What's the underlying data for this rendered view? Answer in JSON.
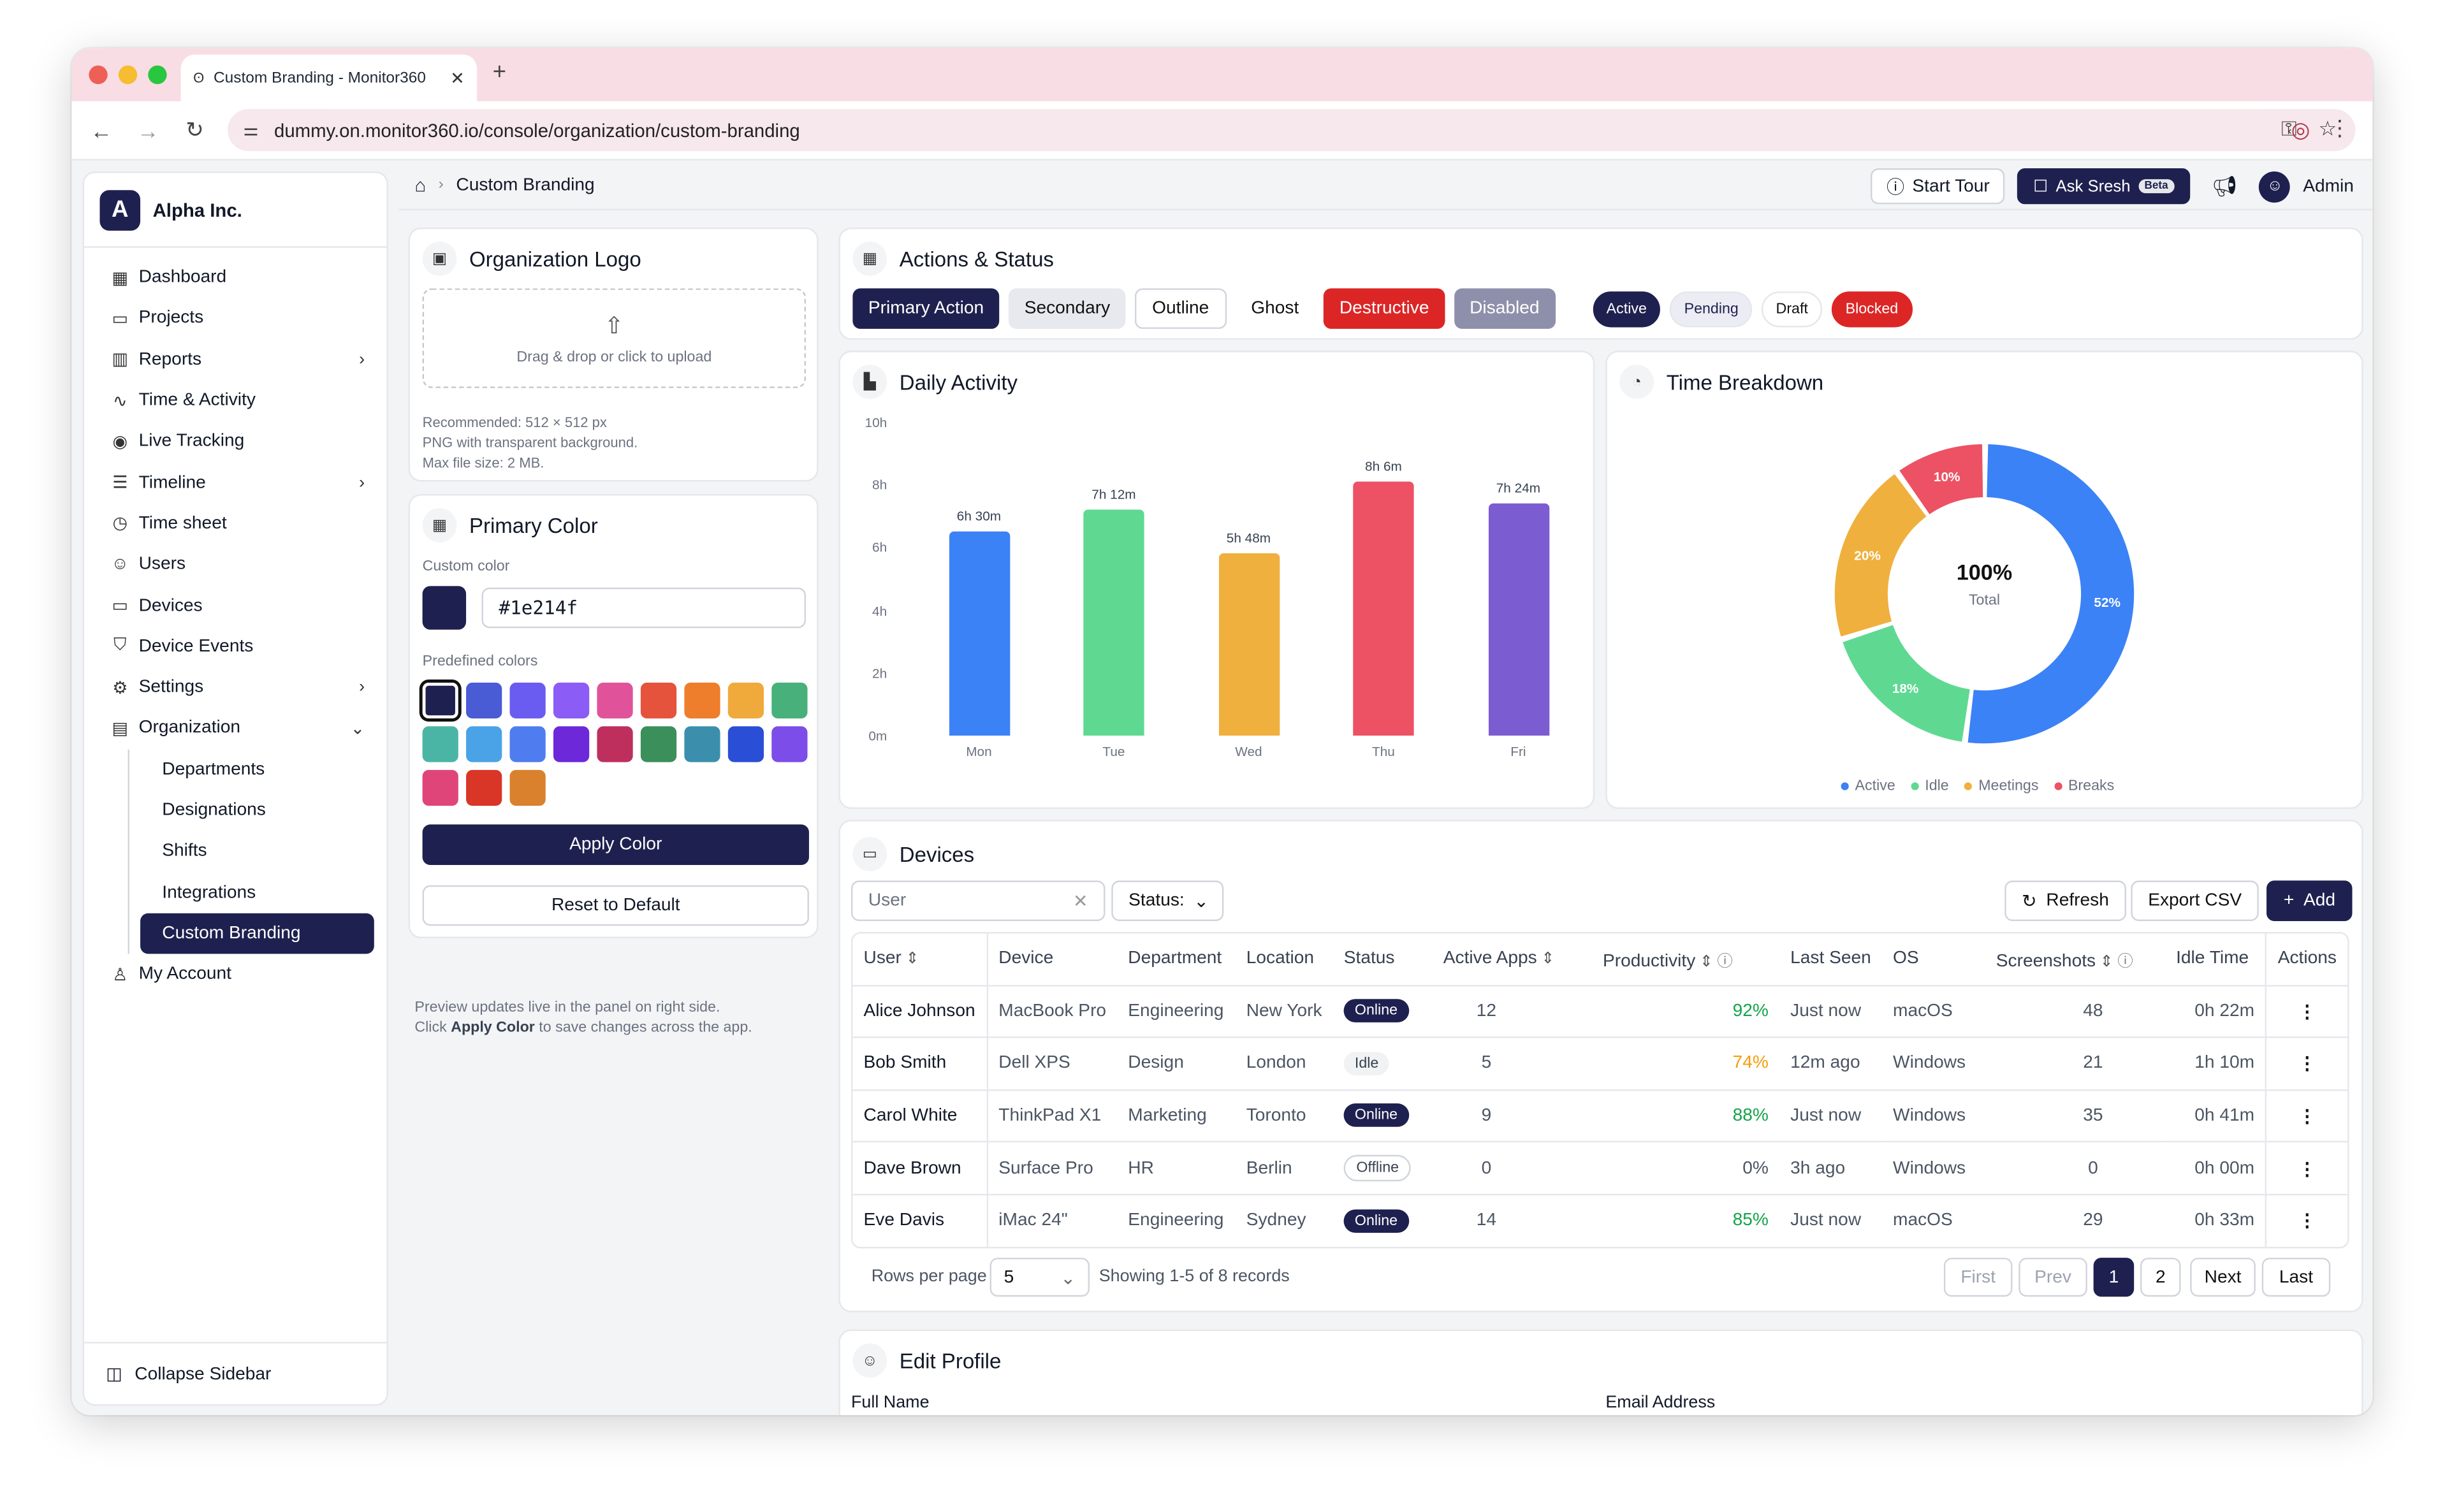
{
  "browser": {
    "tab_title": "Custom Branding - Monitor360",
    "url": "dummy.on.monitor360.io/console/organization/custom-branding"
  },
  "org": {
    "initial": "A",
    "name": "Alpha Inc."
  },
  "sidebar": {
    "items": [
      {
        "label": "Dashboard",
        "icon": "dashboard-icon",
        "glyph": "▦",
        "chev": ""
      },
      {
        "label": "Projects",
        "icon": "folder-icon",
        "glyph": "▭",
        "chev": ""
      },
      {
        "label": "Reports",
        "icon": "reports-icon",
        "glyph": "▥",
        "chev": "›"
      },
      {
        "label": "Time & Activity",
        "icon": "activity-icon",
        "glyph": "∿",
        "chev": ""
      },
      {
        "label": "Live Tracking",
        "icon": "broadcast-icon",
        "glyph": "◉",
        "chev": ""
      },
      {
        "label": "Timeline",
        "icon": "timeline-icon",
        "glyph": "☰",
        "chev": "›"
      },
      {
        "label": "Time sheet",
        "icon": "timer-icon",
        "glyph": "◷",
        "chev": ""
      },
      {
        "label": "Users",
        "icon": "users-icon",
        "glyph": "☺",
        "chev": ""
      },
      {
        "label": "Devices",
        "icon": "monitor-icon",
        "glyph": "▭",
        "chev": ""
      },
      {
        "label": "Device Events",
        "icon": "shield-icon",
        "glyph": "⛉",
        "chev": ""
      },
      {
        "label": "Settings",
        "icon": "gear-icon",
        "glyph": "⚙",
        "chev": "›"
      },
      {
        "label": "Organization",
        "icon": "building-icon",
        "glyph": "▤",
        "chev": "⌄"
      }
    ],
    "sub_items": [
      "Departments",
      "Designations",
      "Shifts",
      "Integrations",
      "Custom Branding"
    ],
    "my_account": "My Account",
    "collapse": "Collapse Sidebar"
  },
  "header": {
    "breadcrumb": "Custom Branding",
    "start_tour": "Start Tour",
    "ask": "Ask Sresh",
    "beta": "Beta",
    "user": "Admin"
  },
  "logo_card": {
    "title": "Organization Logo",
    "drop": "Drag & drop or click to upload",
    "note1": "Recommended: 512 × 512 px",
    "note2": "PNG with transparent background.",
    "note3": "Max file size: 2 MB."
  },
  "color_card": {
    "title": "Primary Color",
    "custom_label": "Custom color",
    "hex": "#1e214f",
    "predefined_label": "Predefined colors",
    "swatches": [
      "#1e214f",
      "#4a5bd6",
      "#6a5cf0",
      "#8b5cf6",
      "#e0539b",
      "#e5533d",
      "#ee7d2c",
      "#f0a93b",
      "#48b07a",
      "#4bb5a5",
      "#49a3e6",
      "#4f7df0",
      "#6d28d9",
      "#be2f5e",
      "#3a8f5b",
      "#3b8fad",
      "#2a4fd6",
      "#7c4de8",
      "#e0457a",
      "#d93628",
      "#d9812c"
    ],
    "apply": "Apply Color",
    "reset": "Reset to Default"
  },
  "preview_note": {
    "line1": "Preview updates live in the panel on right side.",
    "line2a": "Click ",
    "line2b": "Apply Color",
    "line2c": " to save changes across the app."
  },
  "actions": {
    "title": "Actions & Status",
    "buttons": [
      "Primary Action",
      "Secondary",
      "Outline",
      "Ghost",
      "Destructive",
      "Disabled"
    ],
    "pills": [
      "Active",
      "Pending",
      "Draft",
      "Blocked"
    ]
  },
  "daily": {
    "title": "Daily Activity"
  },
  "breakdown": {
    "title": "Time Breakdown",
    "center": "100%",
    "center_sub": "Total"
  },
  "chart_data": [
    {
      "type": "bar",
      "title": "Daily Activity",
      "categories": [
        "Mon",
        "Tue",
        "Wed",
        "Thu",
        "Fri"
      ],
      "values": [
        6.5,
        7.2,
        5.8,
        8.1,
        7.4
      ],
      "data_labels": [
        "6h 30m",
        "7h 12m",
        "5h 48m",
        "8h 6m",
        "7h 24m"
      ],
      "yticks": [
        "0m",
        "2h",
        "4h",
        "6h",
        "8h",
        "10h"
      ],
      "ylim": [
        0,
        10
      ],
      "colors": [
        "#3b82f6",
        "#5fd992",
        "#f0b03e",
        "#ec5264",
        "#7c5cd1"
      ]
    },
    {
      "type": "pie",
      "title": "Time Breakdown",
      "labels": [
        "Active",
        "Idle",
        "Meetings",
        "Breaks"
      ],
      "values": [
        52,
        18,
        20,
        10
      ],
      "slice_labels": [
        "52%",
        "18%",
        "20%",
        "10%"
      ],
      "colors": [
        "#3b82f6",
        "#5fd992",
        "#f0b03e",
        "#ec5264"
      ],
      "legend": "bottom"
    }
  ],
  "devices": {
    "title": "Devices",
    "search_placeholder": "User",
    "status_filter": "Status:",
    "refresh": "Refresh",
    "export": "Export CSV",
    "add": "Add",
    "columns": [
      "User",
      "Device",
      "Department",
      "Location",
      "Status",
      "Active Apps",
      "Productivity",
      "Last Seen",
      "OS",
      "Screenshots",
      "Idle Time",
      "Actions"
    ],
    "rows": [
      {
        "user": "Alice Johnson",
        "device": "MacBook Pro",
        "dept": "Engineering",
        "loc": "New York",
        "status": "Online",
        "apps": "12",
        "prod": "92%",
        "prod_color": "#16a34a",
        "seen": "Just now",
        "os": "macOS",
        "shots": "48",
        "idle": "0h 22m"
      },
      {
        "user": "Bob Smith",
        "device": "Dell XPS",
        "dept": "Design",
        "loc": "London",
        "status": "Idle",
        "apps": "5",
        "prod": "74%",
        "prod_color": "#f59e0b",
        "seen": "12m ago",
        "os": "Windows",
        "shots": "21",
        "idle": "1h 10m"
      },
      {
        "user": "Carol White",
        "device": "ThinkPad X1",
        "dept": "Marketing",
        "loc": "Toronto",
        "status": "Online",
        "apps": "9",
        "prod": "88%",
        "prod_color": "#16a34a",
        "seen": "Just now",
        "os": "Windows",
        "shots": "35",
        "idle": "0h 41m"
      },
      {
        "user": "Dave Brown",
        "device": "Surface Pro",
        "dept": "HR",
        "loc": "Berlin",
        "status": "Offline",
        "apps": "0",
        "prod": "0%",
        "prod_color": "#4b5563",
        "seen": "3h ago",
        "os": "Windows",
        "shots": "0",
        "idle": "0h 00m"
      },
      {
        "user": "Eve Davis",
        "device": "iMac 24\"",
        "dept": "Engineering",
        "loc": "Sydney",
        "status": "Online",
        "apps": "14",
        "prod": "85%",
        "prod_color": "#16a34a",
        "seen": "Just now",
        "os": "macOS",
        "shots": "29",
        "idle": "0h 33m"
      }
    ],
    "rows_per_page_label": "Rows per page",
    "rows_per_page": "5",
    "showing": "Showing 1-5 of 8 records",
    "pager": {
      "first": "First",
      "prev": "Prev",
      "p1": "1",
      "p2": "2",
      "next": "Next",
      "last": "Last"
    }
  },
  "profile": {
    "title": "Edit Profile",
    "full_name": "Full Name",
    "email": "Email Address"
  }
}
